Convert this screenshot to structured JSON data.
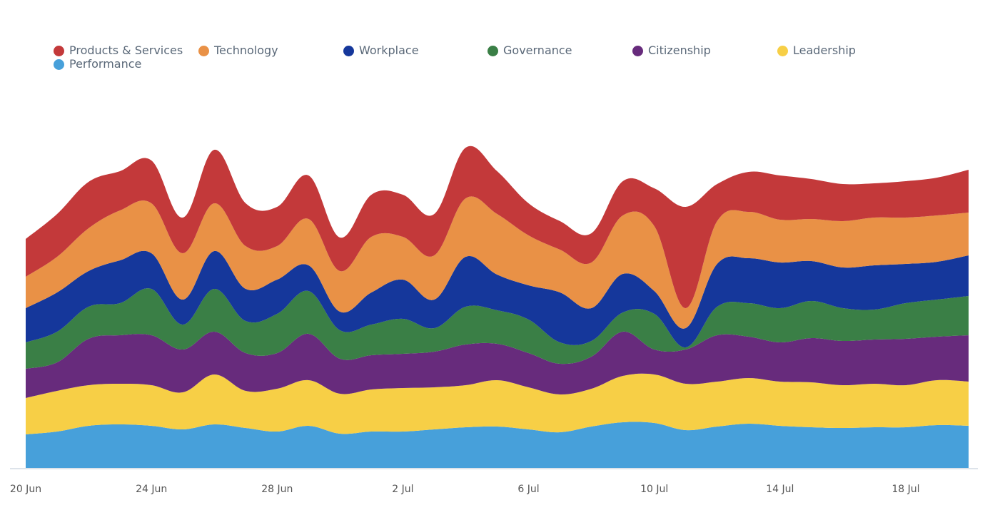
{
  "chart_data": {
    "type": "area",
    "stacked": true,
    "smoothed": true,
    "title": "",
    "xlabel": "",
    "ylabel": "",
    "legend_position": "top-left",
    "grid": false,
    "y_axis_visible": false,
    "ylim": [
      0,
      460
    ],
    "x": [
      "20 Jun",
      "21 Jun",
      "22 Jun",
      "23 Jun",
      "24 Jun",
      "25 Jun",
      "26 Jun",
      "27 Jun",
      "28 Jun",
      "29 Jun",
      "30 Jun",
      "1 Jul",
      "2 Jul",
      "3 Jul",
      "4 Jul",
      "5 Jul",
      "6 Jul",
      "7 Jul",
      "8 Jul",
      "9 Jul",
      "10 Jul",
      "11 Jul",
      "12 Jul",
      "13 Jul",
      "14 Jul",
      "15 Jul",
      "16 Jul",
      "17 Jul",
      "18 Jul",
      "19 Jul",
      "20 Jul"
    ],
    "x_ticks": [
      "20 Jun",
      "24 Jun",
      "28 Jun",
      "2 Jul",
      "6 Jul",
      "10 Jul",
      "14 Jul",
      "18 Jul"
    ],
    "series": [
      {
        "name": "Performance",
        "color": "#47a0da",
        "values": [
          47,
          51,
          59,
          61,
          59,
          54,
          61,
          56,
          51,
          59,
          48,
          51,
          51,
          54,
          57,
          58,
          54,
          50,
          58,
          64,
          63,
          53,
          58,
          62,
          59,
          57,
          56,
          57,
          57,
          60,
          59
        ]
      },
      {
        "name": "Leadership",
        "color": "#f7cf46",
        "values": [
          51,
          57,
          57,
          57,
          57,
          52,
          70,
          52,
          60,
          64,
          56,
          59,
          61,
          59,
          59,
          65,
          59,
          53,
          53,
          65,
          68,
          65,
          63,
          64,
          62,
          63,
          60,
          61,
          59,
          63,
          62
        ]
      },
      {
        "name": "Citizenship",
        "color": "#672b7c",
        "values": [
          41,
          40,
          65,
          68,
          70,
          60,
          60,
          53,
          50,
          65,
          49,
          48,
          48,
          50,
          57,
          51,
          48,
          43,
          45,
          62,
          35,
          48,
          65,
          58,
          55,
          62,
          62,
          62,
          65,
          61,
          65
        ]
      },
      {
        "name": "Governance",
        "color": "#3a7f46",
        "values": [
          37,
          43,
          45,
          45,
          65,
          35,
          60,
          45,
          55,
          60,
          40,
          43,
          49,
          33,
          53,
          47,
          47,
          30,
          22,
          27,
          50,
          3,
          40,
          47,
          48,
          52,
          46,
          42,
          50,
          52,
          55
        ]
      },
      {
        "name": "Workplace",
        "color": "#15379b",
        "values": [
          48,
          55,
          50,
          60,
          50,
          35,
          53,
          45,
          48,
          36,
          26,
          45,
          55,
          40,
          70,
          50,
          48,
          70,
          46,
          54,
          32,
          27,
          60,
          63,
          64,
          56,
          57,
          62,
          55,
          53,
          57
        ]
      },
      {
        "name": "Technology",
        "color": "#e99146",
        "values": [
          44,
          50,
          60,
          70,
          70,
          65,
          67,
          60,
          47,
          65,
          57,
          78,
          60,
          62,
          82,
          85,
          70,
          60,
          64,
          82,
          91,
          28,
          60,
          65,
          60,
          59,
          65,
          67,
          65,
          65,
          60
        ]
      },
      {
        "name": "Products & Services",
        "color": "#c3393a",
        "values": [
          53,
          60,
          65,
          55,
          60,
          50,
          75,
          60,
          55,
          61,
          47,
          59,
          59,
          58,
          71,
          60,
          45,
          40,
          41,
          48,
          53,
          142,
          52,
          56,
          62,
          56,
          52,
          48,
          51,
          53,
          60
        ]
      }
    ]
  },
  "legend": {
    "items": [
      {
        "label": "Products & Services",
        "color": "#c3393a"
      },
      {
        "label": "Technology",
        "color": "#e99146"
      },
      {
        "label": "Workplace",
        "color": "#15379b"
      },
      {
        "label": "Governance",
        "color": "#3a7f46"
      },
      {
        "label": "Citizenship",
        "color": "#672b7c"
      },
      {
        "label": "Leadership",
        "color": "#f7cf46"
      },
      {
        "label": "Performance",
        "color": "#47a0da"
      }
    ]
  },
  "axis": {
    "line_color": "#dde3ea",
    "label_color": "#555555"
  }
}
